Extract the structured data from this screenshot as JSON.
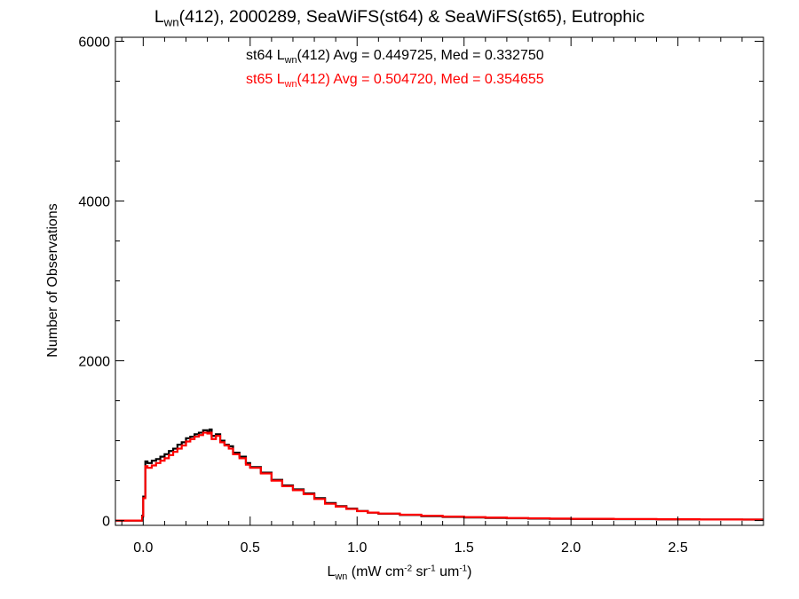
{
  "chart_data": {
    "type": "line",
    "title": {
      "lead": "L",
      "lead_sub": "wn",
      "rest": "(412), 2000289, SeaWiFS(st64) & SeaWiFS(st65), Eutrophic"
    },
    "xlabel": {
      "lead": "L",
      "lead_sub": "wn",
      "p1": " (mW cm",
      "sup1": "-2",
      "p2": " sr",
      "sup2": "-1",
      "p3": " um",
      "sup3": "-1",
      "p4": ")"
    },
    "ylabel": "Number of Observations",
    "xlim": [
      -0.13,
      2.9
    ],
    "ylim": [
      -60,
      6050
    ],
    "x_ticks": [
      0.0,
      0.5,
      1.0,
      1.5,
      2.0,
      2.5
    ],
    "x_tick_labels": [
      "0.0",
      "0.5",
      "1.0",
      "1.5",
      "2.0",
      "2.5"
    ],
    "y_ticks": [
      0,
      2000,
      4000,
      6000
    ],
    "y_tick_labels": [
      "0",
      "2000",
      "4000",
      "6000"
    ],
    "annotations": [
      {
        "pre": "st64 L",
        "sub": "wn",
        "post": "(412) Avg = 0.449725, Med = 0.332750",
        "color": "#000000"
      },
      {
        "pre": "st65 L",
        "sub": "wn",
        "post": "(412) Avg = 0.504720, Med = 0.354655",
        "color": "#ff0000"
      }
    ],
    "series": [
      {
        "name": "st64",
        "color": "#000000",
        "points": [
          [
            -0.13,
            0
          ],
          [
            -0.005,
            0
          ],
          [
            -0.005,
            60
          ],
          [
            0.0,
            60
          ],
          [
            0.0,
            300
          ],
          [
            0.005,
            300
          ],
          [
            0.01,
            740
          ],
          [
            0.02,
            720
          ],
          [
            0.04,
            750
          ],
          [
            0.06,
            770
          ],
          [
            0.08,
            800
          ],
          [
            0.1,
            830
          ],
          [
            0.12,
            870
          ],
          [
            0.14,
            900
          ],
          [
            0.16,
            950
          ],
          [
            0.18,
            980
          ],
          [
            0.2,
            1030
          ],
          [
            0.22,
            1050
          ],
          [
            0.24,
            1080
          ],
          [
            0.26,
            1100
          ],
          [
            0.28,
            1130
          ],
          [
            0.3,
            1110
          ],
          [
            0.31,
            1140
          ],
          [
            0.32,
            1060
          ],
          [
            0.34,
            1080
          ],
          [
            0.36,
            1000
          ],
          [
            0.38,
            950
          ],
          [
            0.4,
            930
          ],
          [
            0.42,
            850
          ],
          [
            0.45,
            800
          ],
          [
            0.48,
            720
          ],
          [
            0.5,
            670
          ],
          [
            0.55,
            600
          ],
          [
            0.6,
            510
          ],
          [
            0.65,
            440
          ],
          [
            0.7,
            390
          ],
          [
            0.75,
            340
          ],
          [
            0.8,
            280
          ],
          [
            0.85,
            220
          ],
          [
            0.9,
            180
          ],
          [
            0.95,
            150
          ],
          [
            1.0,
            120
          ],
          [
            1.05,
            100
          ],
          [
            1.1,
            85
          ],
          [
            1.2,
            70
          ],
          [
            1.3,
            55
          ],
          [
            1.4,
            45
          ],
          [
            1.5,
            38
          ],
          [
            1.6,
            33
          ],
          [
            1.7,
            28
          ],
          [
            1.8,
            25
          ],
          [
            1.9,
            22
          ],
          [
            2.0,
            20
          ],
          [
            2.2,
            17
          ],
          [
            2.4,
            15
          ],
          [
            2.6,
            13
          ],
          [
            2.8,
            12
          ],
          [
            2.9,
            12
          ]
        ]
      },
      {
        "name": "st65",
        "color": "#ff0000",
        "points": [
          [
            -0.13,
            0
          ],
          [
            -0.005,
            0
          ],
          [
            -0.005,
            50
          ],
          [
            0.0,
            50
          ],
          [
            0.0,
            280
          ],
          [
            0.005,
            280
          ],
          [
            0.01,
            680
          ],
          [
            0.02,
            660
          ],
          [
            0.04,
            690
          ],
          [
            0.06,
            720
          ],
          [
            0.08,
            750
          ],
          [
            0.1,
            780
          ],
          [
            0.12,
            820
          ],
          [
            0.14,
            860
          ],
          [
            0.16,
            900
          ],
          [
            0.18,
            940
          ],
          [
            0.2,
            990
          ],
          [
            0.22,
            1020
          ],
          [
            0.24,
            1050
          ],
          [
            0.26,
            1070
          ],
          [
            0.28,
            1100
          ],
          [
            0.3,
            1090
          ],
          [
            0.31,
            1100
          ],
          [
            0.32,
            1020
          ],
          [
            0.34,
            1060
          ],
          [
            0.36,
            980
          ],
          [
            0.38,
            940
          ],
          [
            0.4,
            900
          ],
          [
            0.42,
            830
          ],
          [
            0.45,
            780
          ],
          [
            0.48,
            700
          ],
          [
            0.5,
            660
          ],
          [
            0.55,
            590
          ],
          [
            0.6,
            500
          ],
          [
            0.65,
            430
          ],
          [
            0.7,
            380
          ],
          [
            0.75,
            330
          ],
          [
            0.8,
            270
          ],
          [
            0.85,
            210
          ],
          [
            0.9,
            175
          ],
          [
            0.95,
            145
          ],
          [
            1.0,
            118
          ],
          [
            1.05,
            100
          ],
          [
            1.1,
            88
          ],
          [
            1.2,
            73
          ],
          [
            1.3,
            60
          ],
          [
            1.4,
            50
          ],
          [
            1.5,
            43
          ],
          [
            1.6,
            37
          ],
          [
            1.7,
            32
          ],
          [
            1.8,
            28
          ],
          [
            1.9,
            25
          ],
          [
            2.0,
            22
          ],
          [
            2.2,
            19
          ],
          [
            2.4,
            16
          ],
          [
            2.6,
            14
          ],
          [
            2.8,
            13
          ],
          [
            2.9,
            13
          ]
        ]
      }
    ]
  }
}
